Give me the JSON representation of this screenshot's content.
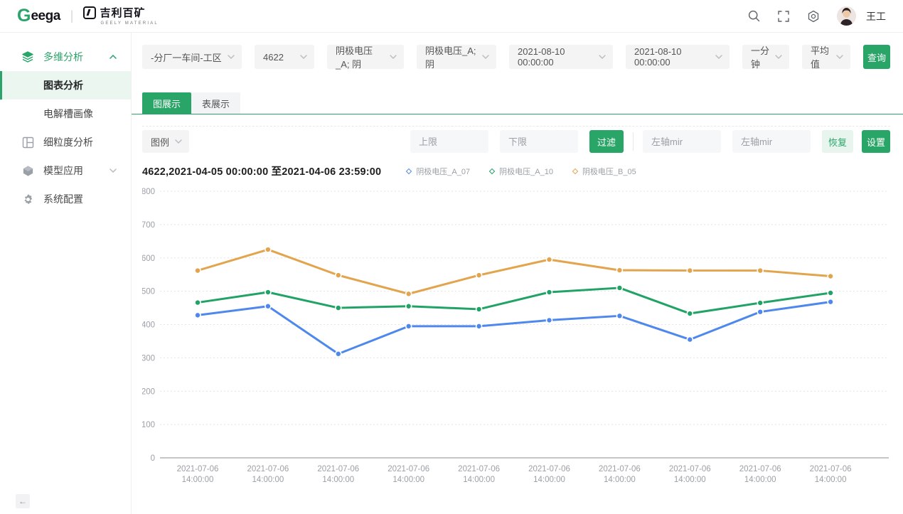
{
  "header": {
    "brand_g": "G",
    "brand_rest": "eega",
    "divider": "|",
    "partner_name": "吉利百矿",
    "partner_sub": "GEELY MATERIAL",
    "user_name": "王工"
  },
  "sidebar": {
    "group1_label": "多维分析",
    "group1_children": {
      "item1": "图表分析",
      "item2": "电解槽画像"
    },
    "item_fine_grained": "细粒度分析",
    "item_model": "模型应用",
    "item_system": "系统配置"
  },
  "filters": {
    "dropdowns": [
      "-分厂一车间-工区",
      "4622",
      "阴极电压_A; 阴",
      "阴极电压_A; 阴",
      "2021-08-10 00:00:00",
      "2021-08-10 00:00:00",
      "一分钟",
      "平均值"
    ],
    "query_button": "查询"
  },
  "tabs": {
    "chart_tab": "图展示",
    "table_tab": "表展示"
  },
  "toolbar": {
    "legend_dropdown": "图例",
    "upper_limit_placeholder": "上限",
    "lower_limit_placeholder": "下限",
    "filter_button": "过滤",
    "left_axis_min_placeholder": "左轴mir",
    "left_axis_max_placeholder": "左轴mir",
    "reset_button": "恢复",
    "settings_button": "设置"
  },
  "colors": {
    "accent_green": "#2aa568",
    "light_green_bg": "#e7f5ee",
    "line_blue": "#4e88ec",
    "line_green": "#21a366",
    "line_orange": "#e2a44d"
  },
  "chart_data": {
    "type": "line",
    "title": "4622,2021-04-05 00:00:00 至2021-04-06 23:59:00",
    "ylim": [
      0,
      800
    ],
    "y_ticks": [
      0,
      100,
      200,
      300,
      400,
      500,
      600,
      700,
      800
    ],
    "grid": "dotted-horizontal",
    "legend_position": "top-right-of-title",
    "categories": [
      "2021-07-06 14:00:00",
      "2021-07-06 14:00:00",
      "2021-07-06 14:00:00",
      "2021-07-06 14:00:00",
      "2021-07-06 14:00:00",
      "2021-07-06 14:00:00",
      "2021-07-06 14:00:00",
      "2021-07-06 14:00:00",
      "2021-07-06 14:00:00",
      "2021-07-06 14:00:00"
    ],
    "series": [
      {
        "name": "阴极电压_A_07",
        "color": "#4e88ec",
        "values": [
          428,
          455,
          312,
          395,
          395,
          413,
          426,
          355,
          438,
          468
        ]
      },
      {
        "name": "阴极电压_A_10",
        "color": "#21a366",
        "values": [
          466,
          497,
          450,
          455,
          446,
          497,
          510,
          433,
          465,
          495
        ]
      },
      {
        "name": "阴极电压_B_05",
        "color": "#e2a44d",
        "values": [
          562,
          625,
          548,
          492,
          548,
          595,
          563,
          562,
          562,
          545
        ]
      }
    ]
  }
}
